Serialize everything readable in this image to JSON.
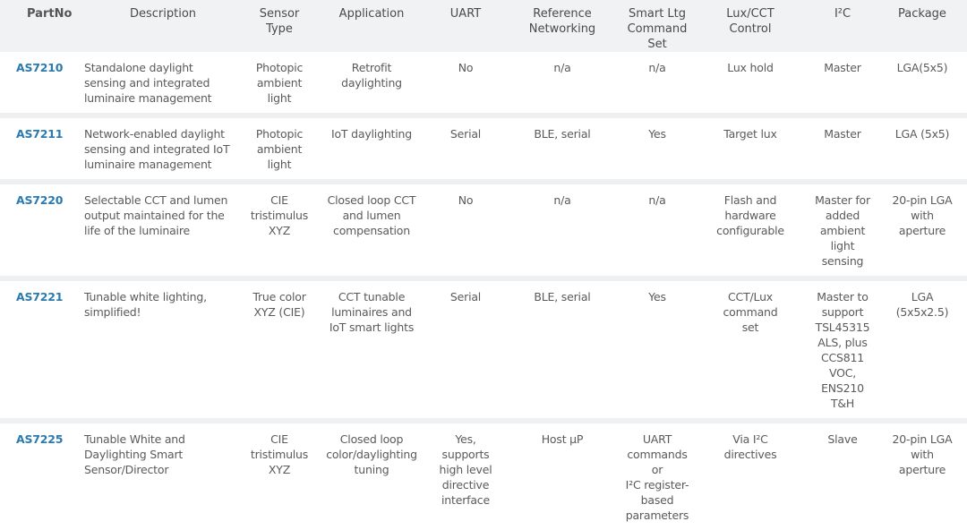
{
  "headers": [
    "PartNo",
    "Description",
    "Sensor\nType",
    "Application",
    "UART",
    "Reference\nNetworking",
    "Smart Ltg\nCommand\nSet",
    "Lux/CCT\nControl",
    "I²C",
    "Package"
  ],
  "rows": [
    [
      "AS7210",
      "Standalone daylight\nsensing and integrated\nluminaire management",
      "Photopic\nambient\nlight",
      "Retrofit\ndaylighting",
      "No",
      "n/a",
      "n/a",
      "Lux hold",
      "Master",
      "LGA(5x5)"
    ],
    [
      "AS7211",
      "Network-enabled daylight\nsensing and integrated IoT\nluminaire management",
      "Photopic\nambient\nlight",
      "IoT daylighting",
      "Serial",
      "BLE, serial",
      "Yes",
      "Target lux",
      "Master",
      "LGA (5x5)"
    ],
    [
      "AS7220",
      "Selectable CCT and lumen\noutput maintained for the\nlife of the luminaire",
      "CIE\ntristimulus\nXYZ",
      "Closed loop CCT\nand lumen\ncompensation",
      "No",
      "n/a",
      "n/a",
      "Flash and\nhardware\nconfigurable",
      "Master for\nadded\nambient light\nsensing",
      "20-pin LGA\nwith\naperture"
    ],
    [
      "AS7221",
      "Tunable white lighting,\nsimplified!",
      "True color\nXYZ (CIE)",
      "CCT tunable\nluminaires and\nIoT smart lights",
      "Serial",
      "BLE, serial",
      "Yes",
      "CCT/Lux\ncommand\nset",
      "Master to\nsupport\nTSL45315\nALS, plus\nCCS811 VOC,\nENS210 T&H",
      "LGA\n(5x5x2.5)"
    ],
    [
      "AS7225",
      "Tunable White and\nDaylighting Smart\nSensor/Director",
      "CIE\ntristimulus\nXYZ",
      "Closed loop\ncolor/daylighting\ntuning",
      "Yes,\nsupports\nhigh level\ndirective\ninterface",
      "Host µP",
      "UART\ncommands or\nI²C register-\nbased\nparameters",
      "Via I²C\ndirectives",
      "Slave",
      "20-pin LGA\nwith\naperture"
    ]
  ],
  "colors": {
    "header_bg": "#f1f2f4",
    "link": "#2a7ab0",
    "separator": "#eef0f2"
  }
}
